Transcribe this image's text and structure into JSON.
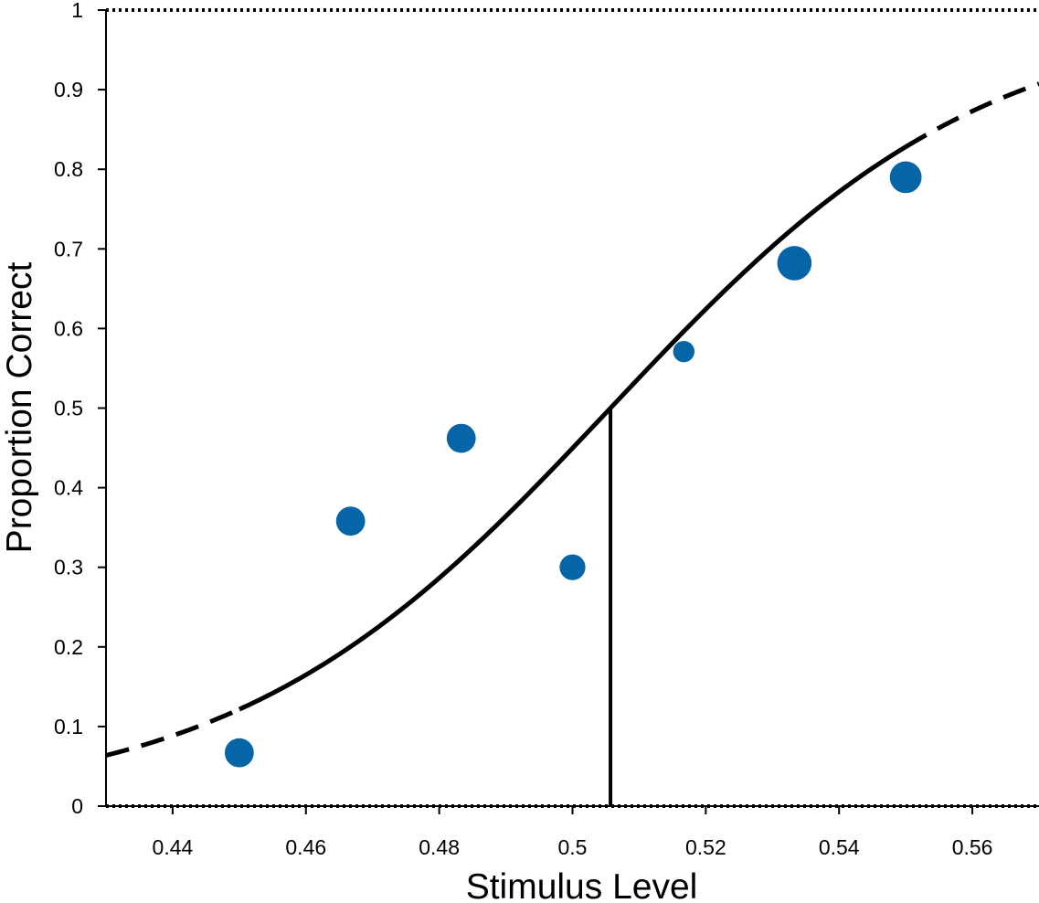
{
  "chart_data": {
    "type": "scatter",
    "xlabel": "Stimulus Level",
    "ylabel": "Proportion Correct",
    "xlim": [
      0.43,
      0.57
    ],
    "ylim": [
      0,
      1
    ],
    "x_ticks": [
      0.44,
      0.46,
      0.48,
      0.5,
      0.52,
      0.54,
      0.56
    ],
    "x_tick_labels": [
      "0.44",
      "0.46",
      "0.48",
      "0.5",
      "0.52",
      "0.54",
      "0.56"
    ],
    "y_ticks": [
      0,
      0.1,
      0.2,
      0.3,
      0.4,
      0.5,
      0.6,
      0.7,
      0.8,
      0.9,
      1
    ],
    "y_tick_labels": [
      "0",
      "0.1",
      "0.2",
      "0.3",
      "0.4",
      "0.5",
      "0.6",
      "0.7",
      "0.8",
      "0.9",
      "1"
    ],
    "grid": false,
    "point_color": "#0565a6",
    "points": [
      {
        "x": 0.45,
        "y": 0.067,
        "weight": 3
      },
      {
        "x": 0.4667,
        "y": 0.358,
        "weight": 3
      },
      {
        "x": 0.4833,
        "y": 0.462,
        "weight": 3
      },
      {
        "x": 0.5,
        "y": 0.3,
        "weight": 2
      },
      {
        "x": 0.5167,
        "y": 0.571,
        "weight": 1
      },
      {
        "x": 0.5333,
        "y": 0.682,
        "weight": 5
      },
      {
        "x": 0.55,
        "y": 0.79,
        "weight": 4
      }
    ],
    "fit_curve": {
      "type": "psychometric",
      "threshold": 0.5057,
      "threshold_y": 0.5,
      "slope": 35.5,
      "guess_rate": 0,
      "lapse_rate": 0,
      "solid_range": [
        0.45,
        0.55
      ],
      "dashed_range": [
        0.43,
        0.57
      ],
      "color": "#000000"
    },
    "reference_lines": [
      {
        "y": 0,
        "style": "dotted"
      },
      {
        "y": 1,
        "style": "dotted"
      }
    ]
  }
}
